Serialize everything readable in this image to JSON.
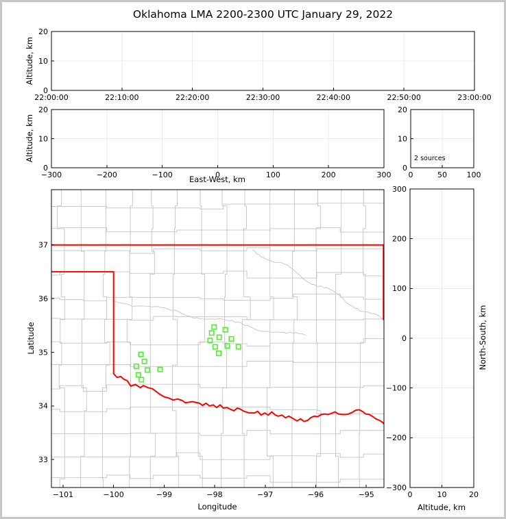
{
  "figure": {
    "title": "Oklahoma LMA 2200-2300 UTC January 29, 2022",
    "background": "#ffffff",
    "frame_color": "#c6c6c6"
  },
  "colors": {
    "axis": "#000000",
    "grid": "#ececec",
    "county_line": "#c9c9c9",
    "state_border": "#ff0000",
    "station_marker": "#50ef2e"
  },
  "chart_data": [
    {
      "id": "time_height",
      "type": "scatter",
      "xlabel": "",
      "ylabel": "Altitude, km",
      "xlim": [
        0,
        6
      ],
      "xticks": [
        0,
        1,
        2,
        3,
        4,
        5,
        6
      ],
      "xtick_labels": [
        "22:00:00",
        "22:10:00",
        "22:20:00",
        "22:30:00",
        "22:40:00",
        "22:50:00",
        "23:00:00"
      ],
      "ylim": [
        0,
        20
      ],
      "yticks": [
        0,
        10,
        20
      ],
      "ytick_labels": [
        "0",
        "10",
        "20"
      ],
      "grid": true,
      "points": []
    },
    {
      "id": "east_west_height",
      "type": "scatter",
      "xlabel": "East-West, km",
      "ylabel": "Altitude, km",
      "xlim": [
        -300,
        300
      ],
      "xticks": [
        -300,
        -200,
        -100,
        0,
        100,
        200,
        300
      ],
      "xtick_labels": [
        "−300",
        "−200",
        "−100",
        "0",
        "100",
        "200",
        "300"
      ],
      "ylim": [
        0,
        20
      ],
      "yticks": [
        0,
        10,
        20
      ],
      "ytick_labels": [
        "0",
        "10",
        "20"
      ],
      "grid": true,
      "points": []
    },
    {
      "id": "altitude_histogram",
      "type": "line",
      "annotation": "2 sources",
      "xlim": [
        0,
        100
      ],
      "xticks": [
        0,
        50,
        100
      ],
      "xtick_labels": [
        "0",
        "50",
        "100"
      ],
      "ylim": [
        0,
        20
      ],
      "yticks": [
        0,
        10,
        20
      ],
      "ytick_labels": [
        "0",
        "10",
        "20"
      ],
      "grid": true,
      "points": []
    },
    {
      "id": "plan_view_map",
      "type": "scatter",
      "xlabel": "Longitude",
      "ylabel": "Latitude",
      "xlim": [
        -101.23,
        -94.65
      ],
      "xticks": [
        -101,
        -100,
        -99,
        -98,
        -97,
        -96,
        -95
      ],
      "xtick_labels": [
        "−101",
        "−100",
        "−99",
        "−98",
        "−97",
        "−96",
        "−95"
      ],
      "ylim": [
        32.48,
        38.03
      ],
      "yticks": [
        33,
        34,
        35,
        36,
        37
      ],
      "ytick_labels": [
        "33",
        "34",
        "35",
        "36",
        "37"
      ],
      "grid": false,
      "stations": [
        [
          -98.01,
          35.47
        ],
        [
          -97.79,
          35.42
        ],
        [
          -98.06,
          35.36
        ],
        [
          -97.91,
          35.28
        ],
        [
          -98.09,
          35.22
        ],
        [
          -97.67,
          35.25
        ],
        [
          -97.99,
          35.1
        ],
        [
          -97.75,
          35.12
        ],
        [
          -97.53,
          35.1
        ],
        [
          -97.92,
          34.98
        ],
        [
          -99.46,
          34.96
        ],
        [
          -99.39,
          34.83
        ],
        [
          -99.55,
          34.74
        ],
        [
          -99.33,
          34.67
        ],
        [
          -99.08,
          34.68
        ],
        [
          -99.51,
          34.58
        ],
        [
          -99.45,
          34.49
        ]
      ],
      "state_border": {
        "north_line": [
          [
            -101.23,
            37.0
          ],
          [
            -94.65,
            37.0
          ]
        ],
        "east_edge": [
          [
            -94.66,
            37.0
          ],
          [
            -94.66,
            35.6
          ]
        ],
        "panhandle_and_red_river": [
          [
            -101.23,
            36.5
          ],
          [
            -100.0,
            36.5
          ],
          [
            -100.0,
            34.6
          ],
          [
            -99.93,
            34.53
          ],
          [
            -99.86,
            34.55
          ],
          [
            -99.8,
            34.5
          ],
          [
            -99.73,
            34.47
          ],
          [
            -99.66,
            34.37
          ],
          [
            -99.57,
            34.4
          ],
          [
            -99.47,
            34.34
          ],
          [
            -99.41,
            34.38
          ],
          [
            -99.32,
            34.34
          ],
          [
            -99.23,
            34.32
          ],
          [
            -99.09,
            34.22
          ],
          [
            -99.0,
            34.17
          ],
          [
            -98.92,
            34.15
          ],
          [
            -98.82,
            34.11
          ],
          [
            -98.73,
            34.13
          ],
          [
            -98.64,
            34.1
          ],
          [
            -98.58,
            34.06
          ],
          [
            -98.44,
            34.08
          ],
          [
            -98.3,
            34.05
          ],
          [
            -98.24,
            34.01
          ],
          [
            -98.17,
            34.05
          ],
          [
            -98.1,
            34.0
          ],
          [
            -98.03,
            34.02
          ],
          [
            -97.96,
            33.97
          ],
          [
            -97.89,
            34.02
          ],
          [
            -97.83,
            33.96
          ],
          [
            -97.76,
            33.97
          ],
          [
            -97.69,
            33.94
          ],
          [
            -97.62,
            33.91
          ],
          [
            -97.55,
            33.96
          ],
          [
            -97.49,
            33.94
          ],
          [
            -97.42,
            33.9
          ],
          [
            -97.32,
            33.87
          ],
          [
            -97.21,
            33.87
          ],
          [
            -97.15,
            33.9
          ],
          [
            -97.08,
            33.83
          ],
          [
            -97.01,
            33.87
          ],
          [
            -96.94,
            33.83
          ],
          [
            -96.87,
            33.89
          ],
          [
            -96.8,
            33.83
          ],
          [
            -96.74,
            33.81
          ],
          [
            -96.67,
            33.83
          ],
          [
            -96.6,
            33.78
          ],
          [
            -96.53,
            33.81
          ],
          [
            -96.44,
            33.76
          ],
          [
            -96.37,
            33.72
          ],
          [
            -96.3,
            33.76
          ],
          [
            -96.23,
            33.71
          ],
          [
            -96.16,
            33.73
          ],
          [
            -96.1,
            33.78
          ],
          [
            -96.03,
            33.81
          ],
          [
            -95.96,
            33.8
          ],
          [
            -95.89,
            33.84
          ],
          [
            -95.82,
            33.85
          ],
          [
            -95.76,
            33.84
          ],
          [
            -95.69,
            33.86
          ],
          [
            -95.62,
            33.89
          ],
          [
            -95.55,
            33.85
          ],
          [
            -95.48,
            33.84
          ],
          [
            -95.41,
            33.84
          ],
          [
            -95.35,
            33.85
          ],
          [
            -95.28,
            33.88
          ],
          [
            -95.21,
            33.92
          ],
          [
            -95.14,
            33.93
          ],
          [
            -95.08,
            33.9
          ],
          [
            -95.01,
            33.85
          ],
          [
            -94.94,
            33.84
          ],
          [
            -94.87,
            33.8
          ],
          [
            -94.81,
            33.76
          ],
          [
            -94.74,
            33.73
          ],
          [
            -94.67,
            33.69
          ],
          [
            -94.63,
            33.64
          ]
        ]
      }
    },
    {
      "id": "north_south_height",
      "type": "scatter",
      "xlabel": "Altitude, km",
      "ylabel": "North-South, km",
      "xlim": [
        0,
        20
      ],
      "xticks": [
        0,
        10,
        20
      ],
      "xtick_labels": [
        "0",
        "10",
        "20"
      ],
      "ylim": [
        -300,
        300
      ],
      "yticks": [
        -300,
        -200,
        -100,
        0,
        100,
        200,
        300
      ],
      "ytick_labels": [
        "−300",
        "−200",
        "−100",
        "0",
        "100",
        "200",
        "300"
      ],
      "grid": true,
      "points": []
    }
  ]
}
